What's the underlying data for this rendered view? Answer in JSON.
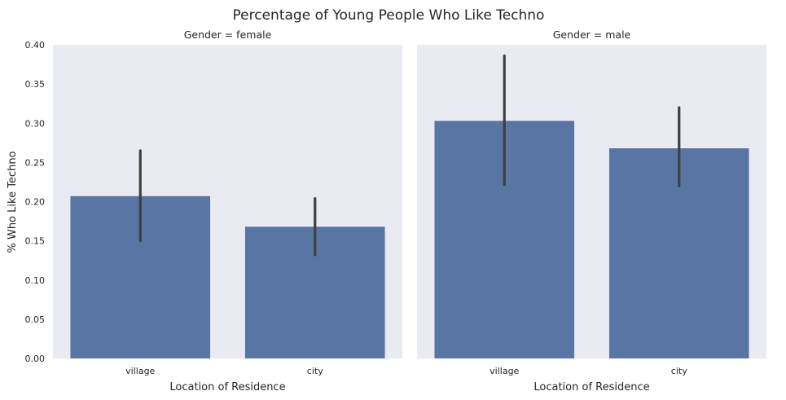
{
  "chart_data": {
    "type": "bar",
    "title": "Percentage of Young People Who Like Techno",
    "ylabel": "% Who Like Techno",
    "xlabel": "Location of Residence",
    "ylim": [
      0,
      0.4
    ],
    "y_ticks": [
      0,
      0.05,
      0.1,
      0.15,
      0.2,
      0.25,
      0.3,
      0.35,
      0.4
    ],
    "y_tick_labels": [
      "0.00",
      "0.05",
      "0.10",
      "0.15",
      "0.20",
      "0.25",
      "0.30",
      "0.35",
      "0.40"
    ],
    "categories": [
      "village",
      "city"
    ],
    "grid": false,
    "facets": [
      {
        "title": "Gender = female",
        "values": [
          0.207,
          0.168
        ],
        "ci": [
          [
            0.15,
            0.265
          ],
          [
            0.132,
            0.204
          ]
        ]
      },
      {
        "title": "Gender = male",
        "values": [
          0.303,
          0.268
        ],
        "ci": [
          [
            0.222,
            0.386
          ],
          [
            0.22,
            0.32
          ]
        ]
      }
    ],
    "colors": {
      "bar": "#5875a4",
      "error_bar": "#3f3f3f",
      "panel_background": "#eaeaf2"
    }
  }
}
